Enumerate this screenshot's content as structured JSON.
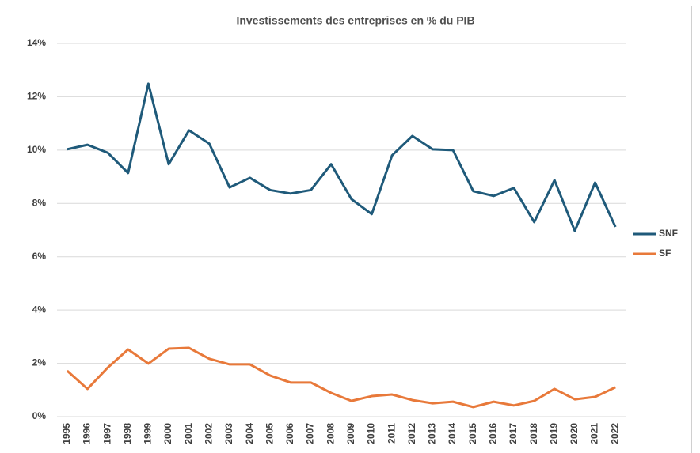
{
  "chart_data": {
    "type": "line",
    "title": "Investissements des entreprises en % du PIB",
    "categories": [
      "1995",
      "1996",
      "1997",
      "1998",
      "1999",
      "2000",
      "2001",
      "2002",
      "2003",
      "2004",
      "2005",
      "2006",
      "2007",
      "2008",
      "2009",
      "2010",
      "2011",
      "2012",
      "2013",
      "2014",
      "2015",
      "2016",
      "2017",
      "2018",
      "2019",
      "2020",
      "2021",
      "2022"
    ],
    "series": [
      {
        "name": "SNF",
        "color": "#1f5a7a",
        "values": [
          10.03,
          10.2,
          9.9,
          9.14,
          12.49,
          9.47,
          10.74,
          10.24,
          8.6,
          8.96,
          8.5,
          8.37,
          8.5,
          9.47,
          8.16,
          7.6,
          9.8,
          10.53,
          10.03,
          10.0,
          8.46,
          8.28,
          8.58,
          7.3,
          8.87,
          6.97,
          8.78,
          7.12
        ]
      },
      {
        "name": "SF",
        "color": "#e8793a",
        "values": [
          1.72,
          1.04,
          1.84,
          2.52,
          1.99,
          2.55,
          2.58,
          2.17,
          1.96,
          1.96,
          1.54,
          1.28,
          1.28,
          0.89,
          0.59,
          0.77,
          0.83,
          0.62,
          0.5,
          0.56,
          0.36,
          0.56,
          0.42,
          0.59,
          1.04,
          0.65,
          0.74,
          1.1
        ]
      }
    ],
    "ylim": [
      0,
      14
    ],
    "yticks": [
      {
        "value": 0,
        "label": "0%"
      },
      {
        "value": 2,
        "label": "2%"
      },
      {
        "value": 4,
        "label": "4%"
      },
      {
        "value": 6,
        "label": "6%"
      },
      {
        "value": 8,
        "label": "8%"
      },
      {
        "value": 10,
        "label": "10%"
      },
      {
        "value": 12,
        "label": "12%"
      },
      {
        "value": 14,
        "label": "14%"
      }
    ],
    "grid": true,
    "legend": "right"
  }
}
